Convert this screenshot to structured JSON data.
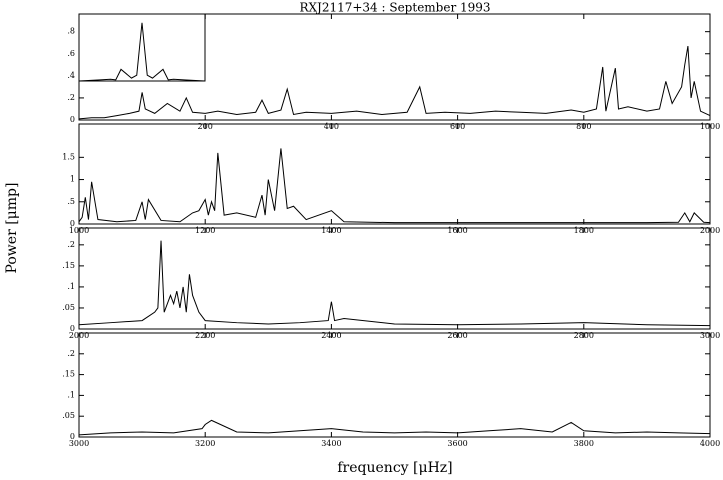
{
  "chart_data": [
    {
      "type": "line",
      "title": "RXJ2117+34 :  September 1993",
      "ylabel": "Power [μmp]",
      "x": [
        0,
        20,
        40,
        60,
        80,
        95,
        100,
        105,
        120,
        140,
        160,
        170,
        180,
        200,
        220,
        250,
        280,
        290,
        300,
        320,
        330,
        340,
        360,
        400,
        440,
        480,
        520,
        540,
        550,
        580,
        620,
        660,
        700,
        740,
        780,
        800,
        820,
        830,
        835,
        850,
        855,
        870,
        900,
        920,
        930,
        940,
        955,
        960,
        965,
        970,
        975,
        985,
        1000
      ],
      "values": [
        0.01,
        0.02,
        0.02,
        0.04,
        0.06,
        0.08,
        0.25,
        0.1,
        0.06,
        0.15,
        0.08,
        0.2,
        0.07,
        0.06,
        0.08,
        0.05,
        0.07,
        0.18,
        0.06,
        0.09,
        0.28,
        0.05,
        0.07,
        0.06,
        0.08,
        0.05,
        0.07,
        0.3,
        0.06,
        0.07,
        0.06,
        0.08,
        0.07,
        0.06,
        0.09,
        0.07,
        0.1,
        0.48,
        0.08,
        0.47,
        0.1,
        0.12,
        0.08,
        0.1,
        0.35,
        0.15,
        0.3,
        0.5,
        0.67,
        0.2,
        0.35,
        0.08,
        0.04
      ],
      "xlim": [
        0,
        1000
      ],
      "ylim": [
        0,
        0.96
      ],
      "xticks": [
        200,
        400,
        600,
        800,
        1000
      ],
      "yticks": [
        0,
        {
          "value": 0.2,
          "label": ".2"
        },
        {
          "value": 0.4,
          "label": ".4"
        },
        {
          "value": 0.6,
          "label": ".6"
        },
        {
          "value": 0.8,
          "label": ".8"
        }
      ],
      "color": "#000000",
      "inset": {
        "x": [
          -60,
          -40,
          -30,
          -25,
          -20,
          -10,
          -5,
          0,
          5,
          10,
          20,
          25,
          30,
          40,
          60
        ],
        "values": [
          0,
          0.02,
          0.03,
          0.02,
          0.2,
          0.05,
          0.1,
          1,
          0.1,
          0.05,
          0.2,
          0.02,
          0.03,
          0.02,
          0
        ],
        "xlim": [
          -60,
          60
        ],
        "ylim": [
          0,
          1.15
        ]
      }
    },
    {
      "type": "line",
      "x": [
        1000,
        1005,
        1010,
        1015,
        1020,
        1030,
        1060,
        1090,
        1100,
        1105,
        1110,
        1130,
        1160,
        1180,
        1190,
        1200,
        1205,
        1210,
        1215,
        1220,
        1230,
        1250,
        1280,
        1290,
        1295,
        1300,
        1310,
        1320,
        1330,
        1340,
        1360,
        1400,
        1420,
        1500,
        1600,
        1700,
        1800,
        1900,
        1950,
        1960,
        1968,
        1975,
        1990,
        2000
      ],
      "values": [
        0.05,
        0.15,
        0.6,
        0.1,
        0.95,
        0.1,
        0.05,
        0.08,
        0.5,
        0.1,
        0.55,
        0.08,
        0.05,
        0.25,
        0.3,
        0.55,
        0.2,
        0.5,
        0.3,
        1.6,
        0.2,
        0.25,
        0.15,
        0.65,
        0.2,
        1.0,
        0.3,
        1.7,
        0.35,
        0.4,
        0.1,
        0.3,
        0.05,
        0.03,
        0.03,
        0.03,
        0.03,
        0.03,
        0.04,
        0.25,
        0.05,
        0.25,
        0.04,
        0.03
      ],
      "xlim": [
        1000,
        2000
      ],
      "ylim": [
        0,
        2.25
      ],
      "xticks": [
        1000,
        1200,
        1400,
        1600,
        1800,
        2000
      ],
      "yticks": [
        0,
        {
          "value": 0.5,
          "label": ".5"
        },
        1,
        1.5
      ],
      "color": "#000000"
    },
    {
      "type": "line",
      "x": [
        2000,
        2050,
        2100,
        2120,
        2125,
        2130,
        2135,
        2145,
        2150,
        2155,
        2160,
        2165,
        2170,
        2175,
        2180,
        2190,
        2200,
        2250,
        2300,
        2350,
        2395,
        2400,
        2405,
        2420,
        2500,
        2600,
        2700,
        2800,
        2900,
        3000
      ],
      "values": [
        0.01,
        0.015,
        0.02,
        0.04,
        0.05,
        0.21,
        0.04,
        0.08,
        0.06,
        0.09,
        0.05,
        0.1,
        0.04,
        0.13,
        0.08,
        0.04,
        0.02,
        0.015,
        0.012,
        0.015,
        0.02,
        0.065,
        0.02,
        0.025,
        0.012,
        0.01,
        0.012,
        0.015,
        0.01,
        0.008
      ],
      "xlim": [
        2000,
        3000
      ],
      "ylim": [
        0,
        0.24
      ],
      "xticks": [
        2000,
        2200,
        2400,
        2600,
        2800,
        3000
      ],
      "yticks": [
        0,
        {
          "value": 0.05,
          "label": ".05"
        },
        {
          "value": 0.1,
          "label": ".1"
        },
        {
          "value": 0.15,
          "label": ".15"
        },
        {
          "value": 0.2,
          "label": ".2"
        }
      ],
      "color": "#000000"
    },
    {
      "type": "line",
      "xlabel": "frequency [μHz]",
      "x": [
        3000,
        3050,
        3100,
        3150,
        3195,
        3200,
        3210,
        3250,
        3300,
        3350,
        3400,
        3450,
        3500,
        3550,
        3600,
        3650,
        3700,
        3750,
        3780,
        3800,
        3850,
        3900,
        3950,
        4000
      ],
      "values": [
        0.005,
        0.01,
        0.012,
        0.01,
        0.02,
        0.03,
        0.04,
        0.012,
        0.01,
        0.015,
        0.02,
        0.012,
        0.01,
        0.012,
        0.01,
        0.015,
        0.02,
        0.012,
        0.035,
        0.015,
        0.01,
        0.012,
        0.01,
        0.008
      ],
      "xlim": [
        3000,
        4000
      ],
      "ylim": [
        0,
        0.25
      ],
      "xticks": [
        3000,
        3200,
        3400,
        3600,
        3800,
        4000
      ],
      "yticks": [
        0,
        {
          "value": 0.05,
          "label": ".05"
        },
        {
          "value": 0.1,
          "label": ".1"
        },
        {
          "value": 0.15,
          "label": ".15"
        },
        {
          "value": 0.2,
          "label": ".2"
        }
      ],
      "color": "#000000"
    }
  ]
}
